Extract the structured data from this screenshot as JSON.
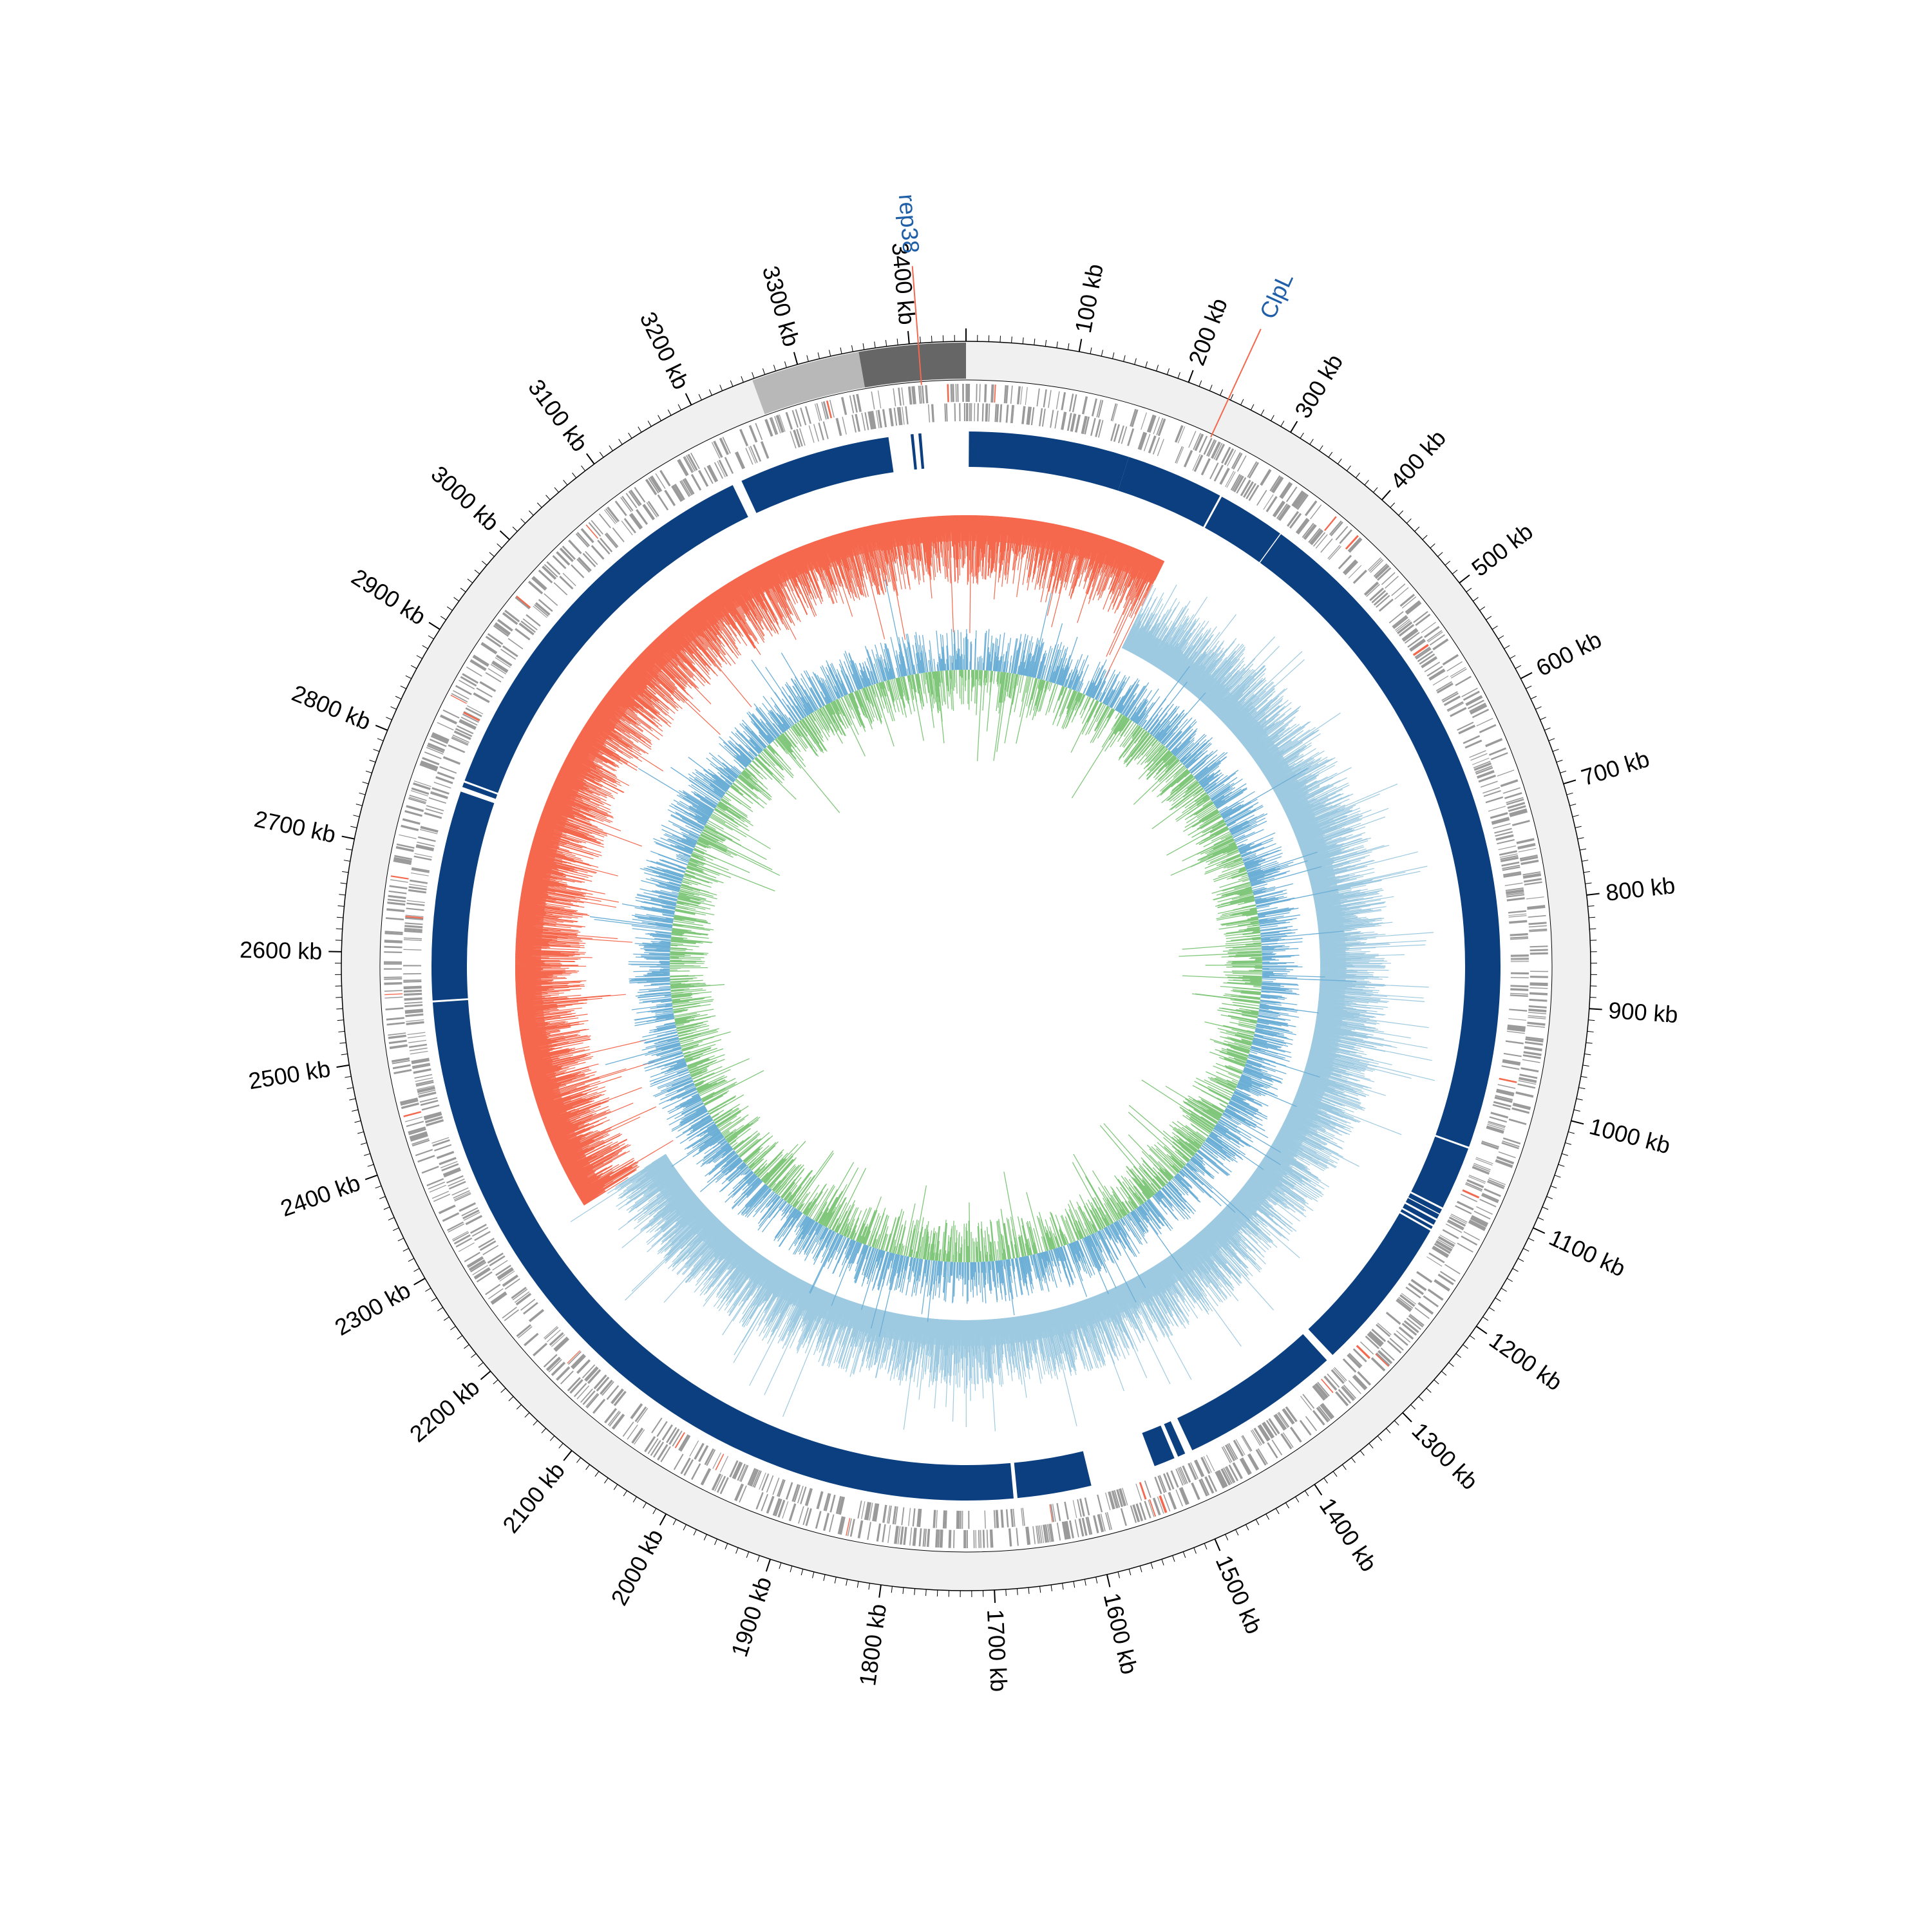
{
  "genome_map": {
    "genome_length_kb": 3450,
    "units": "kb",
    "tick_labels": [
      "100 kb",
      "200 kb",
      "300 kb",
      "400 kb",
      "500 kb",
      "600 kb",
      "700 kb",
      "800 kb",
      "900 kb",
      "1000 kb",
      "1100 kb",
      "1200 kb",
      "1300 kb",
      "1400 kb",
      "1500 kb",
      "1600 kb",
      "1700 kb",
      "1800 kb",
      "1900 kb",
      "2000 kb",
      "2100 kb",
      "2200 kb",
      "2300 kb",
      "2400 kb",
      "2500 kb",
      "2600 kb",
      "2700 kb",
      "2800 kb",
      "2900 kb",
      "3000 kb",
      "3100 kb",
      "3200 kb",
      "3300 kb",
      "3400 kb"
    ],
    "tick_positions_kb": [
      100,
      200,
      300,
      400,
      500,
      600,
      700,
      800,
      900,
      1000,
      1100,
      1200,
      1300,
      1400,
      1500,
      1600,
      1700,
      1800,
      1900,
      2000,
      2100,
      2200,
      2300,
      2400,
      2500,
      2600,
      2700,
      2800,
      2900,
      3000,
      3100,
      3200,
      3300,
      3400
    ],
    "gene_labels": [
      {
        "name": "rep38",
        "position_kb": 3408,
        "color": "#1f5fa8",
        "line_color": "#f4684e"
      },
      {
        "name": "ClpL",
        "position_kb": 238,
        "color": "#1f5fa8",
        "line_color": "#f4684e"
      }
    ],
    "contig_blocks_kb": [
      {
        "start": 3258,
        "end": 3355,
        "color": "#b8b8b8"
      },
      {
        "start": 3355,
        "end": 3450,
        "color": "#666666"
      }
    ],
    "blast_hits_kb": [
      [
        3,
        170
      ],
      [
        170,
        272
      ],
      [
        274,
        345
      ],
      [
        346,
        1052
      ],
      [
        1054,
        1120
      ],
      [
        1122,
        1127
      ],
      [
        1128,
        1133
      ],
      [
        1135,
        1140
      ],
      [
        1142,
        1145
      ],
      [
        1147,
        1310
      ],
      [
        1318,
        1485
      ],
      [
        1493,
        1501
      ],
      [
        1505,
        1527
      ],
      [
        1595,
        1672
      ],
      [
        1676,
        2550
      ],
      [
        2552,
        2770
      ],
      [
        2775,
        2780
      ],
      [
        2782,
        3202
      ],
      [
        3212,
        3370
      ],
      [
        3393,
        3396
      ],
      [
        3401,
        3404
      ]
    ],
    "colors": {
      "outer_ring": "#f0f0f0",
      "gene_features": "#9a9a9a",
      "gene_highlight": "#f4684e",
      "blast_hits": "#0b3f7f",
      "skew_positive": "#f4684e",
      "skew_negative": "#9ecae1",
      "skew_outlier_positive": "#f4684e",
      "skew_outlier_negative": "#6baed6",
      "gc_content_positive": "#6baed6",
      "gc_content_negative": "#80c77b"
    }
  }
}
